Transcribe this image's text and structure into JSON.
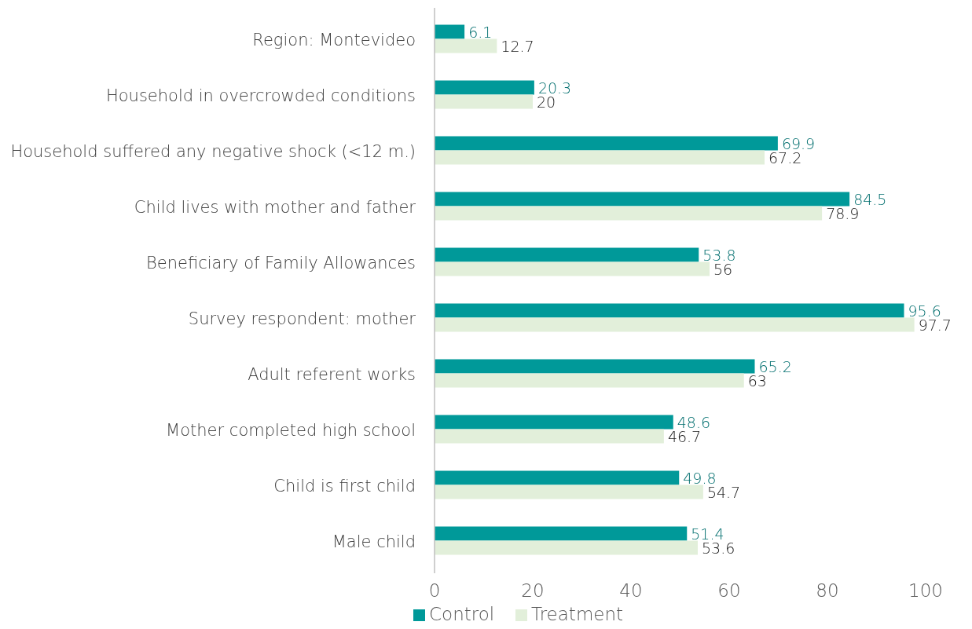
{
  "chart_data": {
    "type": "bar",
    "orientation": "horizontal",
    "categories": [
      "Region: Montevideo",
      "Household in overcrowded conditions",
      "Household suffered any negative shock (<12 m.)",
      "Child lives with mother and father",
      "Beneficiary of Family Allowances",
      "Survey respondent: mother",
      "Adult referent works",
      "Mother completed high school",
      "Child is first child",
      "Male child"
    ],
    "series": [
      {
        "name": "Control",
        "color": "#009999",
        "values": [
          6.1,
          20.3,
          69.9,
          84.5,
          53.8,
          95.6,
          65.2,
          48.6,
          49.8,
          51.4
        ]
      },
      {
        "name": "Treatment",
        "color": "#e2efda",
        "values": [
          12.7,
          20,
          67.2,
          78.9,
          56,
          97.7,
          63,
          46.7,
          54.7,
          53.6
        ]
      }
    ],
    "xlim": [
      0,
      100
    ],
    "xticks": [
      0,
      20,
      40,
      60,
      80,
      100
    ],
    "data_labels": true,
    "grid": false,
    "legend": "bottom"
  }
}
